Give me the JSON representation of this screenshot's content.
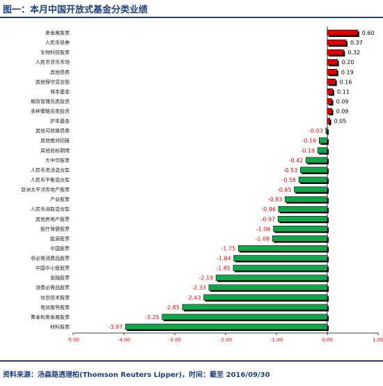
{
  "title": "图一：本月中国开放式基金分类业绩",
  "source": "资料来源：汤森路透理柏(Thomson Reuters Lipper)，时间：截至 2016/09/30",
  "colors": {
    "positive": "#e00000",
    "negative": "#12a64a",
    "title": "#1f3f7a",
    "label": "#ff0000"
  },
  "chart_data": {
    "type": "bar",
    "orientation": "horizontal",
    "categories": [
      "贵金属股票",
      "人民币债券",
      "生物科技股票",
      "人民币货币市场",
      "其他债券",
      "其他保守混合型",
      "保本基金",
      "期货管理另类投资",
      "多种策略另类投资",
      "护本基金",
      "其他可转换债券",
      "其他绝对回报",
      "其他目标期限",
      "大中华股票",
      "人民币灵活混合型",
      "人民币平衡混合型",
      "亚洲太平洋房地产股票",
      "产业股票",
      "人民币进取混合型",
      "其他房地产股票",
      "医疗保健股票",
      "能源股票",
      "中国股票",
      "非必需消费品股票",
      "中国中小盘股票",
      "金融股票",
      "消费必需品股票",
      "信息技术股票",
      "电信服务股票",
      "黄金和贵金属股票",
      "材料股票"
    ],
    "values": [
      0.6,
      0.37,
      0.32,
      0.2,
      0.19,
      0.16,
      0.11,
      0.09,
      0.09,
      0.05,
      -0.03,
      -0.16,
      -0.19,
      -0.42,
      -0.53,
      -0.56,
      -0.65,
      -0.83,
      -0.96,
      -0.97,
      -1.06,
      -1.08,
      -1.75,
      -1.84,
      -1.85,
      -2.19,
      -2.33,
      -2.43,
      -2.85,
      -3.25,
      -3.97
    ],
    "xlim": [
      -5.0,
      1.0
    ],
    "xticks": [
      -5.0,
      -4.0,
      -3.0,
      -2.0,
      -1.0,
      0.0,
      1.0
    ],
    "xtick_labels": [
      "-5.00",
      "-4.00",
      "-3.00",
      "-2.00",
      "-1.00",
      "0.00",
      "1.00"
    ],
    "grid": false,
    "legend": "none"
  }
}
